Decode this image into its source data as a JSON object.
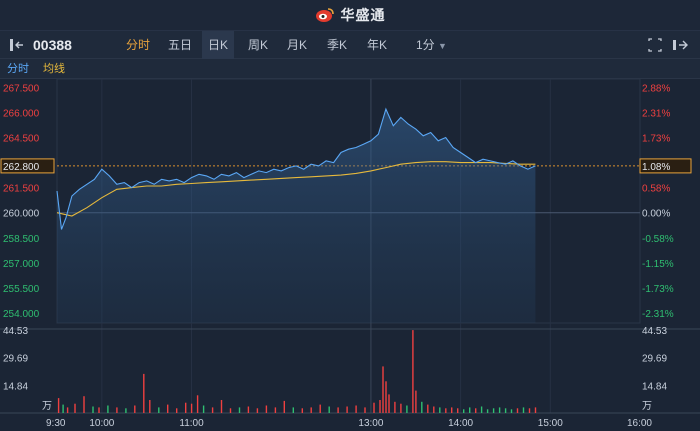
{
  "app": {
    "brand": "华盛通"
  },
  "toolbar": {
    "symbol": "00388",
    "tabs": [
      {
        "label": "分时",
        "state": "selected-text"
      },
      {
        "label": "五日",
        "state": "normal"
      },
      {
        "label": "日K",
        "state": "highlight"
      },
      {
        "label": "周K",
        "state": "normal"
      },
      {
        "label": "月K",
        "state": "normal"
      },
      {
        "label": "季K",
        "state": "normal"
      },
      {
        "label": "年K",
        "state": "normal"
      }
    ],
    "interval": "1分"
  },
  "indicators": {
    "time_share": "分时",
    "avg_line": "均线"
  },
  "price_axis": {
    "left": [
      "267.500",
      "266.000",
      "264.500",
      "262.800",
      "261.500",
      "260.000",
      "258.500",
      "257.000",
      "255.500",
      "254.000"
    ],
    "right": [
      "2.88%",
      "2.31%",
      "1.73%",
      "1.08%",
      "0.58%",
      "0.00%",
      "-0.58%",
      "-1.15%",
      "-1.73%",
      "-2.31%"
    ]
  },
  "volume_axis": {
    "labels": [
      "44.53",
      "29.69",
      "14.84"
    ],
    "unit": "万"
  },
  "time_axis": [
    "9:30",
    "10:00",
    "11:00",
    "13:00",
    "14:00",
    "15:00",
    "16:00"
  ],
  "colors": {
    "up": "#ef4040",
    "down": "#2fbf71",
    "price_line": "#5aa7f5",
    "avg_line": "#e6b93c",
    "accent": "#e8a33c",
    "bg": "#1b2535"
  },
  "chart_data": {
    "type": "line",
    "prev_close": 260.0,
    "last_price": 262.8,
    "last_change_pct": "1.08%",
    "ylim": [
      253.4,
      268.0
    ],
    "series": [
      {
        "x": [
          "09:30",
          "09:33",
          "09:36",
          "09:40",
          "09:45",
          "09:50",
          "09:55",
          "10:00",
          "10:05",
          "10:10",
          "10:15",
          "10:20",
          "10:25",
          "10:30",
          "10:35",
          "10:40",
          "10:45",
          "10:50",
          "10:55",
          "11:00",
          "11:05",
          "11:10",
          "11:15",
          "11:20",
          "11:25",
          "11:30",
          "11:35",
          "11:40",
          "11:45",
          "11:50",
          "11:55",
          "12:00",
          "12:05",
          "12:10",
          "12:15",
          "12:20",
          "12:25",
          "12:30",
          "12:35",
          "12:40",
          "12:45",
          "12:50",
          "12:55",
          "13:00",
          "13:05",
          "13:10",
          "13:15",
          "13:20",
          "13:25",
          "13:30",
          "13:35",
          "13:40",
          "13:45",
          "13:50",
          "13:55",
          "14:00",
          "14:05",
          "14:10",
          "14:15",
          "14:20",
          "14:25",
          "14:30",
          "14:35",
          "14:40",
          "14:45",
          "14:50"
        ],
        "values": [
          261.3,
          259.0,
          259.7,
          261.0,
          261.4,
          261.7,
          262.0,
          262.6,
          262.2,
          261.7,
          261.8,
          261.5,
          261.8,
          261.9,
          261.7,
          262.0,
          261.9,
          262.0,
          261.8,
          262.1,
          262.3,
          262.2,
          262.0,
          262.3,
          262.2,
          262.4,
          262.1,
          262.3,
          262.5,
          262.4,
          262.6,
          262.5,
          262.7,
          262.8,
          262.6,
          262.9,
          262.8,
          263.1,
          263.0,
          263.6,
          263.8,
          263.9,
          264.1,
          264.3,
          264.7,
          266.2,
          265.2,
          265.7,
          265.3,
          265.0,
          264.6,
          264.8,
          264.3,
          264.5,
          263.9,
          263.6,
          263.3,
          263.0,
          263.2,
          263.1,
          263.0,
          262.9,
          263.1,
          262.8,
          262.6,
          262.8
        ]
      },
      {
        "x": [
          "09:30",
          "09:40",
          "09:50",
          "10:00",
          "10:10",
          "10:20",
          "10:30",
          "10:40",
          "10:50",
          "11:00",
          "11:10",
          "11:20",
          "11:30",
          "11:40",
          "11:50",
          "12:00",
          "12:10",
          "12:20",
          "12:30",
          "12:40",
          "12:50",
          "13:00",
          "13:10",
          "13:20",
          "13:30",
          "13:40",
          "13:50",
          "14:00",
          "14:10",
          "14:20",
          "14:30",
          "14:40",
          "14:50"
        ],
        "values": [
          260.0,
          259.8,
          260.3,
          260.9,
          261.4,
          261.5,
          261.6,
          261.6,
          261.7,
          261.75,
          261.8,
          261.85,
          261.9,
          261.95,
          262.0,
          262.05,
          262.1,
          262.15,
          262.2,
          262.25,
          262.35,
          262.5,
          262.7,
          262.9,
          263.0,
          263.05,
          263.05,
          263.0,
          263.0,
          263.0,
          262.95,
          262.9,
          262.9
        ]
      }
    ],
    "volume": [
      {
        "t": "09:31",
        "v": 8.0,
        "dir": "up"
      },
      {
        "t": "09:34",
        "v": 4.5,
        "dir": "down"
      },
      {
        "t": "09:37",
        "v": 3.0,
        "dir": "up"
      },
      {
        "t": "09:42",
        "v": 5.0,
        "dir": "up"
      },
      {
        "t": "09:48",
        "v": 9.0,
        "dir": "up"
      },
      {
        "t": "09:54",
        "v": 3.5,
        "dir": "down"
      },
      {
        "t": "09:58",
        "v": 3.0,
        "dir": "up"
      },
      {
        "t": "10:04",
        "v": 4.0,
        "dir": "down"
      },
      {
        "t": "10:10",
        "v": 3.0,
        "dir": "up"
      },
      {
        "t": "10:16",
        "v": 2.5,
        "dir": "down"
      },
      {
        "t": "10:22",
        "v": 4.0,
        "dir": "up"
      },
      {
        "t": "10:28",
        "v": 21.0,
        "dir": "up"
      },
      {
        "t": "10:32",
        "v": 7.0,
        "dir": "up"
      },
      {
        "t": "10:38",
        "v": 3.0,
        "dir": "down"
      },
      {
        "t": "10:44",
        "v": 4.5,
        "dir": "up"
      },
      {
        "t": "10:50",
        "v": 2.5,
        "dir": "up"
      },
      {
        "t": "10:56",
        "v": 5.5,
        "dir": "up"
      },
      {
        "t": "11:00",
        "v": 5.0,
        "dir": "up"
      },
      {
        "t": "11:04",
        "v": 9.5,
        "dir": "up"
      },
      {
        "t": "11:08",
        "v": 4.0,
        "dir": "down"
      },
      {
        "t": "11:14",
        "v": 3.0,
        "dir": "up"
      },
      {
        "t": "11:20",
        "v": 7.0,
        "dir": "up"
      },
      {
        "t": "11:26",
        "v": 2.5,
        "dir": "up"
      },
      {
        "t": "11:32",
        "v": 3.0,
        "dir": "down"
      },
      {
        "t": "11:38",
        "v": 3.5,
        "dir": "up"
      },
      {
        "t": "11:44",
        "v": 2.5,
        "dir": "up"
      },
      {
        "t": "11:50",
        "v": 4.0,
        "dir": "up"
      },
      {
        "t": "11:56",
        "v": 3.0,
        "dir": "up"
      },
      {
        "t": "12:02",
        "v": 6.5,
        "dir": "up"
      },
      {
        "t": "12:08",
        "v": 3.0,
        "dir": "down"
      },
      {
        "t": "12:14",
        "v": 2.5,
        "dir": "up"
      },
      {
        "t": "12:20",
        "v": 3.0,
        "dir": "up"
      },
      {
        "t": "12:26",
        "v": 4.5,
        "dir": "up"
      },
      {
        "t": "12:32",
        "v": 3.5,
        "dir": "down"
      },
      {
        "t": "12:38",
        "v": 3.0,
        "dir": "up"
      },
      {
        "t": "12:44",
        "v": 3.5,
        "dir": "up"
      },
      {
        "t": "12:50",
        "v": 4.0,
        "dir": "up"
      },
      {
        "t": "12:56",
        "v": 3.0,
        "dir": "up"
      },
      {
        "t": "13:02",
        "v": 5.5,
        "dir": "up"
      },
      {
        "t": "13:06",
        "v": 7.0,
        "dir": "up"
      },
      {
        "t": "13:08",
        "v": 25.0,
        "dir": "up"
      },
      {
        "t": "13:10",
        "v": 17.0,
        "dir": "up"
      },
      {
        "t": "13:12",
        "v": 10.0,
        "dir": "up"
      },
      {
        "t": "13:16",
        "v": 6.0,
        "dir": "up"
      },
      {
        "t": "13:20",
        "v": 5.0,
        "dir": "up"
      },
      {
        "t": "13:24",
        "v": 4.0,
        "dir": "down"
      },
      {
        "t": "13:28",
        "v": 44.5,
        "dir": "up"
      },
      {
        "t": "13:30",
        "v": 12.0,
        "dir": "up"
      },
      {
        "t": "13:34",
        "v": 6.0,
        "dir": "down"
      },
      {
        "t": "13:38",
        "v": 4.5,
        "dir": "up"
      },
      {
        "t": "13:42",
        "v": 3.5,
        "dir": "up"
      },
      {
        "t": "13:46",
        "v": 3.0,
        "dir": "down"
      },
      {
        "t": "13:50",
        "v": 2.5,
        "dir": "up"
      },
      {
        "t": "13:54",
        "v": 3.0,
        "dir": "up"
      },
      {
        "t": "13:58",
        "v": 2.5,
        "dir": "up"
      },
      {
        "t": "14:02",
        "v": 2.0,
        "dir": "down"
      },
      {
        "t": "14:06",
        "v": 3.0,
        "dir": "down"
      },
      {
        "t": "14:10",
        "v": 2.5,
        "dir": "up"
      },
      {
        "t": "14:14",
        "v": 3.5,
        "dir": "down"
      },
      {
        "t": "14:18",
        "v": 2.0,
        "dir": "down"
      },
      {
        "t": "14:22",
        "v": 2.5,
        "dir": "down"
      },
      {
        "t": "14:26",
        "v": 3.0,
        "dir": "down"
      },
      {
        "t": "14:30",
        "v": 2.5,
        "dir": "down"
      },
      {
        "t": "14:34",
        "v": 2.0,
        "dir": "down"
      },
      {
        "t": "14:38",
        "v": 2.5,
        "dir": "up"
      },
      {
        "t": "14:42",
        "v": 3.0,
        "dir": "down"
      },
      {
        "t": "14:46",
        "v": 2.5,
        "dir": "up"
      },
      {
        "t": "14:50",
        "v": 3.0,
        "dir": "up"
      }
    ]
  }
}
